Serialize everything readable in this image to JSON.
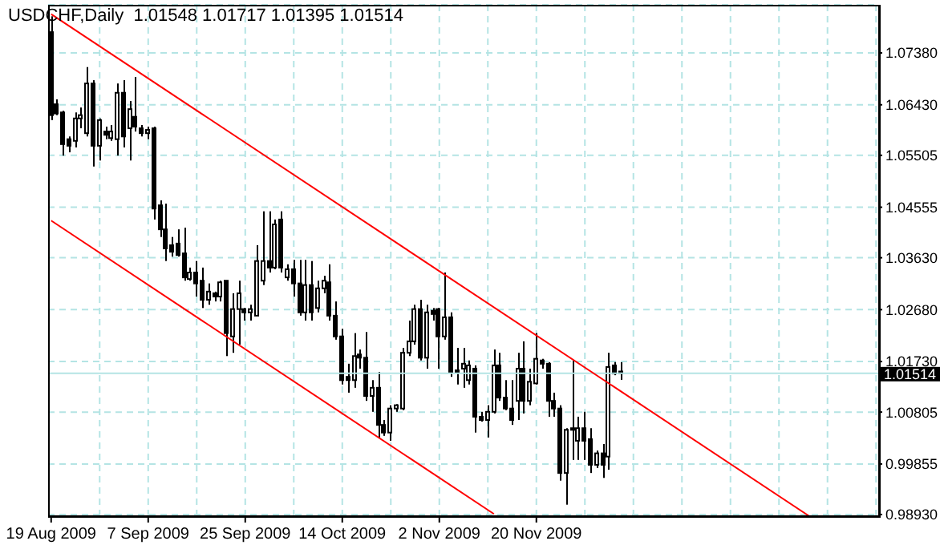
{
  "chart_data": {
    "type": "candlestick",
    "title": "USDCHF,Daily  1.01548 1.01717 1.01395 1.01514",
    "categories": [
      "19 Aug 2009",
      null,
      null,
      null,
      null,
      null,
      null,
      null,
      null,
      null,
      null,
      null,
      null,
      null,
      null,
      null,
      "7 Sep 2009",
      null,
      null,
      null,
      null,
      null,
      null,
      null,
      null,
      null,
      null,
      null,
      null,
      null,
      null,
      null,
      "25 Sep 2009",
      null,
      null,
      null,
      null,
      null,
      null,
      null,
      null,
      null,
      null,
      null,
      null,
      null,
      null,
      null,
      "14 Oct 2009",
      null,
      null,
      null,
      null,
      null,
      null,
      null,
      null,
      null,
      null,
      null,
      null,
      null,
      null,
      null,
      "2 Nov 2009",
      null,
      null,
      null,
      null,
      null,
      null,
      null,
      null,
      null,
      null,
      null,
      null,
      null,
      null,
      null,
      "20 Nov 2009",
      null,
      null,
      null,
      null,
      null,
      null,
      null,
      null,
      null,
      null,
      null,
      null,
      null,
      null,
      null,
      null,
      null,
      null,
      null,
      null,
      null,
      null,
      null,
      null,
      null,
      null,
      null,
      null,
      null,
      null,
      null,
      null,
      null,
      null,
      null,
      null,
      null,
      null,
      null,
      null,
      null,
      null,
      null,
      null,
      null,
      null,
      null,
      null,
      null,
      null,
      null,
      null,
      null,
      null,
      null,
      null
    ],
    "ohlc": [
      [
        1.0776,
        1.0805,
        1.0615,
        1.0624
      ],
      [
        1.0644,
        1.0653,
        1.0624,
        1.0627
      ],
      [
        1.0629,
        1.0632,
        1.055,
        1.0571
      ],
      [
        1.058,
        1.0585,
        1.0556,
        1.0568
      ],
      [
        1.0577,
        1.0629,
        1.0565,
        1.0618
      ],
      [
        1.0618,
        1.0638,
        1.06,
        1.0624
      ],
      [
        1.0591,
        1.0712,
        1.0585,
        1.0682
      ],
      [
        1.0682,
        1.0688,
        1.053,
        1.0568
      ],
      [
        1.0568,
        1.0618,
        1.0541,
        1.0615
      ],
      [
        1.0594,
        1.0603,
        1.058,
        1.0588
      ],
      [
        1.0582,
        1.0606,
        1.0577,
        1.0594
      ],
      [
        1.058,
        1.0682,
        1.055,
        1.0665
      ],
      [
        1.0665,
        1.0688,
        1.0565,
        1.0585
      ],
      [
        1.06,
        1.065,
        1.0541,
        1.0635
      ],
      [
        1.0621,
        1.0694,
        1.0594,
        1.0603
      ],
      [
        1.06,
        1.0606,
        1.0585,
        1.0591
      ],
      [
        1.0591,
        1.0603,
        1.058,
        1.0597
      ],
      [
        1.06,
        1.0603,
        1.0433,
        1.0453
      ],
      [
        1.0459,
        1.0468,
        1.0401,
        1.0415
      ],
      [
        1.0415,
        1.0462,
        1.0357,
        1.038
      ],
      [
        1.0386,
        1.0401,
        1.0365,
        1.0374
      ],
      [
        1.0389,
        1.0415,
        1.0365,
        1.0368
      ],
      [
        1.0371,
        1.0418,
        1.0321,
        1.0327
      ],
      [
        1.0324,
        1.0345,
        1.0321,
        1.0336
      ],
      [
        1.0336,
        1.0357,
        1.0292,
        1.0316
      ],
      [
        1.0321,
        1.0345,
        1.0271,
        1.0286
      ],
      [
        1.0286,
        1.0316,
        1.0277,
        1.0301
      ],
      [
        1.0298,
        1.0301,
        1.0283,
        1.0292
      ],
      [
        1.0292,
        1.0321,
        1.0283,
        1.0318
      ],
      [
        1.0321,
        1.0321,
        1.0183,
        1.0225
      ],
      [
        1.0219,
        1.0298,
        1.0189,
        1.0269
      ],
      [
        1.0269,
        1.0321,
        1.0204,
        1.0298
      ],
      [
        1.0269,
        1.0271,
        1.0248,
        1.0263
      ],
      [
        1.0263,
        1.0277,
        1.0248,
        1.0269
      ],
      [
        1.0257,
        1.0386,
        1.0257,
        1.0357
      ],
      [
        1.0321,
        1.0448,
        1.0313,
        1.0357
      ],
      [
        1.0357,
        1.0448,
        1.0336,
        1.0345
      ],
      [
        1.0345,
        1.0433,
        1.0342,
        1.0424
      ],
      [
        1.0433,
        1.0448,
        1.0336,
        1.0345
      ],
      [
        1.0327,
        1.0351,
        1.0321,
        1.0342
      ],
      [
        1.0342,
        1.0359,
        1.0292,
        1.0316
      ],
      [
        1.0316,
        1.0359,
        1.0257,
        1.0263
      ],
      [
        1.0263,
        1.0359,
        1.0248,
        1.0313
      ],
      [
        1.0313,
        1.0357,
        1.0248,
        1.0263
      ],
      [
        1.0271,
        1.0321,
        1.0263,
        1.0307
      ],
      [
        1.0307,
        1.033,
        1.0298,
        1.0321
      ],
      [
        1.0318,
        1.0351,
        1.0248,
        1.0257
      ],
      [
        1.0257,
        1.0283,
        1.0213,
        1.0219
      ],
      [
        1.0219,
        1.0233,
        1.0131,
        1.0139
      ],
      [
        1.0145,
        1.0169,
        1.0116,
        1.0139
      ],
      [
        1.0139,
        1.0225,
        1.0125,
        1.0183
      ],
      [
        1.0186,
        1.0195,
        1.016,
        1.018
      ],
      [
        1.018,
        1.0227,
        1.0101,
        1.011
      ],
      [
        1.011,
        1.0139,
        1.0081,
        1.0125
      ],
      [
        1.0125,
        1.0154,
        1.0034,
        1.0057
      ],
      [
        1.0057,
        1.0066,
        1.0037,
        1.0043
      ],
      [
        1.0043,
        1.0093,
        1.0028,
        1.0087
      ],
      [
        1.0087,
        1.0095,
        1.0081,
        1.0093
      ],
      [
        1.0087,
        1.0198,
        1.0084,
        1.0189
      ],
      [
        1.0189,
        1.0248,
        1.0183,
        1.021
      ],
      [
        1.021,
        1.0277,
        1.0204,
        1.0269
      ],
      [
        1.0269,
        1.0286,
        1.0175,
        1.018
      ],
      [
        1.018,
        1.0277,
        1.016,
        1.0263
      ],
      [
        1.0266,
        1.0271,
        1.0248,
        1.026
      ],
      [
        1.0269,
        1.0271,
        1.016,
        1.0219
      ],
      [
        1.0219,
        1.0336,
        1.0213,
        1.0254
      ],
      [
        1.0254,
        1.0263,
        1.0145,
        1.0154
      ],
      [
        1.0157,
        1.0198,
        1.0131,
        1.0154
      ],
      [
        1.016,
        1.0198,
        1.0125,
        1.0169
      ],
      [
        1.0139,
        1.0175,
        1.0131,
        1.0166
      ],
      [
        1.016,
        1.0166,
        1.0043,
        1.0072
      ],
      [
        1.0072,
        1.0081,
        1.0063,
        1.0066
      ],
      [
        1.0066,
        1.0093,
        1.0034,
        1.0081
      ],
      [
        1.0081,
        1.0195,
        1.0078,
        1.0166
      ],
      [
        1.0166,
        1.0189,
        1.0101,
        1.0107
      ],
      [
        1.0107,
        1.0139,
        1.0084,
        1.0087
      ],
      [
        1.0087,
        1.0139,
        1.0057,
        1.0066
      ],
      [
        1.0101,
        1.0189,
        1.0066,
        1.016
      ],
      [
        1.016,
        1.021,
        1.0078,
        1.0101
      ],
      [
        1.0101,
        1.016,
        1.0093,
        1.0136
      ],
      [
        1.0133,
        1.0225,
        1.0131,
        1.0178
      ],
      [
        1.0175,
        1.0178,
        1.016,
        1.0169
      ],
      [
        1.0169,
        1.0172,
        1.0072,
        1.0101
      ],
      [
        1.0101,
        1.0116,
        1.0072,
        1.0087
      ],
      [
        1.0087,
        1.0093,
        0.9955,
        0.9969
      ],
      [
        0.9969,
        1.0051,
        0.9911,
        1.0048
      ],
      [
        1.0048,
        1.0175,
        0.9993,
        1.0051
      ],
      [
        1.0028,
        1.0072,
        0.9993,
        1.0051
      ],
      [
        1.0051,
        1.0081,
        0.9993,
        1.0028
      ],
      [
        1.0031,
        1.0051,
        0.9969,
        0.9984
      ],
      [
        0.9984,
        1.001,
        0.9978,
        1.0005
      ],
      [
        1.0005,
        1.0022,
        0.996,
        0.9984
      ],
      [
        0.9999,
        1.0189,
        0.9975,
        1.0163
      ],
      [
        1.0166,
        1.0172,
        1.0148,
        1.0151
      ],
      [
        1.01548,
        1.01717,
        1.01395,
        1.01514
      ],
      null,
      null,
      null,
      null,
      null,
      null,
      null,
      null,
      null,
      null,
      null,
      null,
      null,
      null,
      null,
      null,
      null,
      null,
      null,
      null,
      null,
      null,
      null,
      null,
      null,
      null,
      null,
      null,
      null,
      null,
      null,
      null,
      null,
      null,
      null,
      null,
      null,
      null,
      null,
      null,
      null,
      null
    ],
    "series": [
      {
        "type": "line",
        "color": "#ff0000",
        "values": [
          1.0809,
          null,
          null,
          null,
          null,
          null,
          null,
          null,
          null,
          null,
          null,
          null,
          null,
          null,
          null,
          null,
          null,
          null,
          null,
          null,
          null,
          null,
          null,
          null,
          null,
          null,
          null,
          null,
          null,
          null,
          null,
          null,
          null,
          null,
          null,
          null,
          null,
          null,
          null,
          null,
          null,
          null,
          null,
          null,
          null,
          null,
          null,
          null,
          null,
          null,
          null,
          null,
          null,
          null,
          null,
          null,
          null,
          null,
          null,
          null,
          null,
          null,
          null,
          null,
          null,
          null,
          null,
          null,
          null,
          null,
          null,
          null,
          null,
          null,
          null,
          null,
          null,
          null,
          null,
          null,
          null,
          null,
          null,
          null,
          null,
          null,
          null,
          null,
          null,
          null,
          null,
          null,
          null,
          null,
          null,
          null,
          null,
          null,
          null,
          null,
          null,
          null,
          null,
          null,
          null,
          null,
          null,
          null,
          null,
          null,
          null,
          null,
          null,
          null,
          null,
          null,
          null,
          null,
          null,
          null,
          null,
          null,
          null,
          null,
          null,
          0.989,
          null,
          null,
          null,
          null,
          null,
          null,
          null,
          null,
          null,
          null,
          null
        ]
      },
      {
        "type": "line",
        "color": "#ff0000",
        "values": [
          1.0431,
          null,
          null,
          null,
          null,
          null,
          null,
          null,
          null,
          null,
          null,
          null,
          null,
          null,
          null,
          null,
          null,
          null,
          null,
          null,
          null,
          null,
          null,
          null,
          null,
          null,
          null,
          null,
          null,
          null,
          null,
          null,
          null,
          null,
          null,
          null,
          null,
          null,
          null,
          null,
          null,
          null,
          null,
          null,
          null,
          null,
          null,
          null,
          null,
          null,
          null,
          null,
          null,
          null,
          null,
          null,
          null,
          null,
          null,
          null,
          null,
          null,
          null,
          null,
          null,
          null,
          null,
          null,
          null,
          null,
          null,
          null,
          null,
          0.9894,
          null,
          null,
          null,
          null,
          null,
          null,
          null,
          null,
          null,
          null,
          null,
          null,
          null,
          null,
          null,
          null,
          null,
          null,
          null,
          null,
          null,
          null,
          null,
          null,
          null,
          null,
          null,
          null,
          null,
          null,
          null,
          null,
          null,
          null,
          null,
          null,
          null,
          null,
          null,
          null,
          null,
          null,
          null,
          null,
          null,
          null,
          null,
          null,
          null,
          null,
          null,
          null,
          null,
          null,
          null,
          null,
          null,
          null,
          null,
          null,
          null,
          null,
          null
        ]
      }
    ],
    "ylim": [
      0.989,
      1.0826
    ],
    "yticks": [
      {
        "value": 1.0738,
        "label": "1.07380"
      },
      {
        "value": 1.0643,
        "label": "1.06430"
      },
      {
        "value": 1.05505,
        "label": "1.05505"
      },
      {
        "value": 1.04555,
        "label": "1.04555"
      },
      {
        "value": 1.0363,
        "label": "1.03630"
      },
      {
        "value": 1.0268,
        "label": "1.02680"
      },
      {
        "value": 1.0173,
        "label": "1.01730"
      },
      {
        "value": 1.00805,
        "label": "1.00805"
      },
      {
        "value": 0.99855,
        "label": "0.99855"
      },
      {
        "value": 0.9893,
        "label": "0.98930"
      }
    ],
    "ref_lines": [
      {
        "axis": "y",
        "value": 1.01514,
        "label": "1.01514",
        "color": "#b4e4e4"
      }
    ],
    "grid": true
  }
}
